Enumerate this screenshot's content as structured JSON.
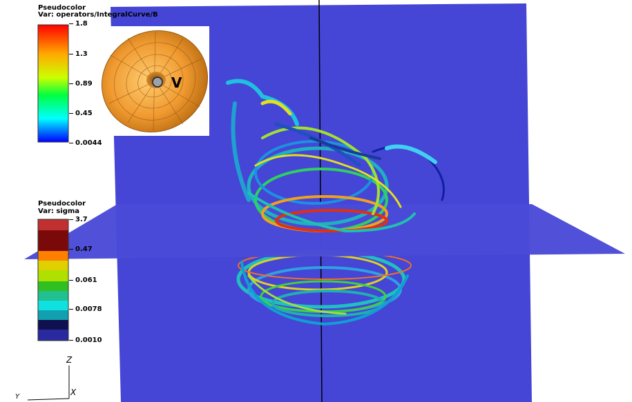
{
  "legend_top": {
    "title": "Pseudocolor",
    "var": "Var: operators/IntegralCurve/B",
    "ticks": [
      "1.8",
      "1.3",
      "0.89",
      "0.45",
      "0.0044"
    ]
  },
  "legend_bottom": {
    "title": "Pseudocolor",
    "var": "Var: sigma",
    "ticks": [
      "3.7",
      "0.47",
      "0.061",
      "0.0078",
      "0.0010"
    ]
  },
  "inset": {
    "label": "V"
  },
  "axes": {
    "z": "Z",
    "x": "X",
    "y": "Y"
  },
  "colors": {
    "slice_plane": "#4545d6",
    "slice_plane_horizontal": "#4a4ad8",
    "torus": "#f0a040"
  }
}
